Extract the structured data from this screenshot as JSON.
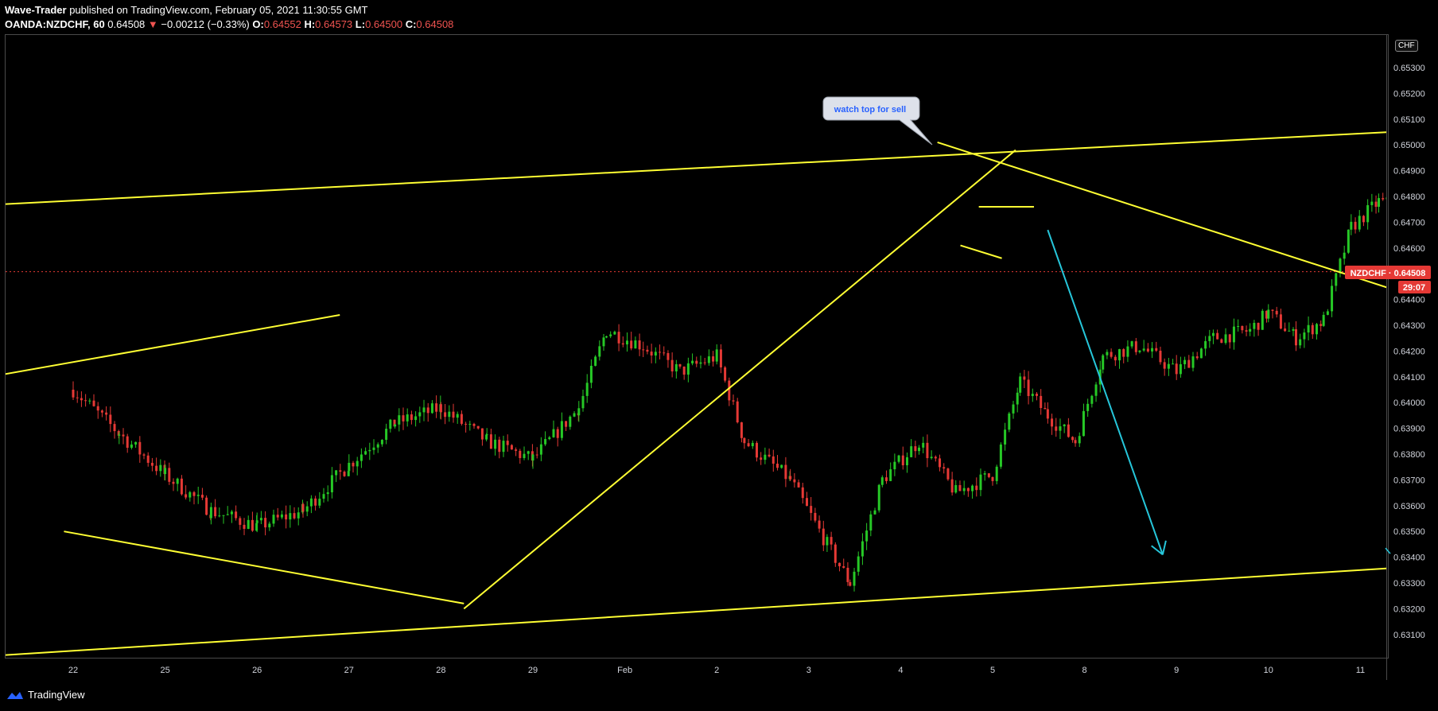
{
  "header": {
    "author": "Wave-Trader",
    "published_text": "published on TradingView.com, February 05, 2021 11:30:55 GMT",
    "symbol": "OANDA:NZDCHF, 60",
    "last": "0.64508",
    "change_arrow": "▼",
    "change": "−0.00212 (−0.33%)",
    "o_label": "O:",
    "o": "0.64552",
    "h_label": "H:",
    "h": "0.64573",
    "l_label": "L:",
    "l": "0.64500",
    "c_label": "C:",
    "c": "0.64508"
  },
  "currency_badge": "CHF",
  "price_tag": {
    "label": "NZDCHF · 0.64508",
    "countdown": "29:07",
    "color": "#e53935"
  },
  "footer": {
    "logo_text": "TradingView",
    "logo_icon": "tradingview-cloud-icon"
  },
  "annotation": {
    "text": "watch top for sell"
  },
  "colors": {
    "up": "#26c826",
    "down": "#e53935",
    "trend": "#ffff33",
    "arrow": "#26c6da",
    "background": "#000000"
  },
  "chart_data": {
    "type": "candlestick",
    "title": "",
    "xlabel": "",
    "ylabel": "",
    "ylim": [
      0.6302,
      0.6545
    ],
    "y_ticks": [
      "0.65300",
      "0.65200",
      "0.65100",
      "0.65000",
      "0.64900",
      "0.64800",
      "0.64700",
      "0.64600",
      "0.64400",
      "0.64300",
      "0.64200",
      "0.64100",
      "0.64000",
      "0.63900",
      "0.63800",
      "0.63700",
      "0.63600",
      "0.63500",
      "0.63400",
      "0.63300",
      "0.63200",
      "0.63100"
    ],
    "x_ticks": [
      "22",
      "25",
      "26",
      "27",
      "28",
      "29",
      "Feb",
      "2",
      "3",
      "4",
      "5",
      "8",
      "9",
      "10",
      "11"
    ],
    "grid": false,
    "last_price": 0.64508,
    "price_path": [
      [
        0,
        0.6405
      ],
      [
        0.5,
        0.6388
      ],
      [
        1.0,
        0.6372
      ],
      [
        1.5,
        0.6358
      ],
      [
        2.0,
        0.6352
      ],
      [
        2.5,
        0.6358
      ],
      [
        3.0,
        0.6376
      ],
      [
        3.5,
        0.6392
      ],
      [
        4.0,
        0.6398
      ],
      [
        4.5,
        0.6385
      ],
      [
        5.0,
        0.6378
      ],
      [
        5.5,
        0.6398
      ],
      [
        5.8,
        0.6428
      ],
      [
        6.2,
        0.6422
      ],
      [
        6.6,
        0.6412
      ],
      [
        7.0,
        0.6418
      ],
      [
        7.3,
        0.6385
      ],
      [
        7.8,
        0.637
      ],
      [
        8.2,
        0.6345
      ],
      [
        8.45,
        0.633
      ],
      [
        8.8,
        0.637
      ],
      [
        9.2,
        0.6385
      ],
      [
        9.6,
        0.6365
      ],
      [
        10.0,
        0.6372
      ],
      [
        10.3,
        0.6408
      ],
      [
        10.6,
        0.6395
      ],
      [
        10.9,
        0.6385
      ],
      [
        11.2,
        0.6418
      ],
      [
        11.6,
        0.6422
      ],
      [
        12.0,
        0.6412
      ],
      [
        12.4,
        0.6425
      ],
      [
        12.8,
        0.6428
      ],
      [
        13.0,
        0.6435
      ],
      [
        13.3,
        0.6425
      ],
      [
        13.6,
        0.6432
      ],
      [
        13.9,
        0.6468
      ],
      [
        14.2,
        0.6478
      ],
      [
        14.6,
        0.6475
      ],
      [
        15.0,
        0.6472
      ],
      [
        15.4,
        0.6478
      ],
      [
        15.7,
        0.6488
      ],
      [
        16.0,
        0.647
      ],
      [
        16.3,
        0.646
      ],
      [
        16.7,
        0.6472
      ],
      [
        17.0,
        0.6468
      ],
      [
        17.3,
        0.6462
      ],
      [
        17.5,
        0.6451
      ]
    ],
    "trendlines": [
      {
        "name": "upper-channel",
        "points": [
          [
            -0.75,
            0.6477
          ],
          [
            20.25,
            0.6516
          ]
        ]
      },
      {
        "name": "lower-channel",
        "points": [
          [
            -0.75,
            0.6302
          ],
          [
            20.25,
            0.6349
          ]
        ]
      },
      {
        "name": "early-resistance",
        "points": [
          [
            -0.75,
            0.6411
          ],
          [
            2.9,
            0.6434
          ]
        ]
      },
      {
        "name": "early-support",
        "points": [
          [
            -0.1,
            0.635
          ],
          [
            4.25,
            0.6322
          ]
        ]
      },
      {
        "name": "rising-support",
        "points": [
          [
            4.25,
            0.632
          ],
          [
            10.25,
            0.6498
          ]
        ]
      },
      {
        "name": "descending-resistance",
        "points": [
          [
            9.4,
            0.6501
          ],
          [
            20.25,
            0.6376
          ]
        ]
      },
      {
        "name": "flag-top",
        "points": [
          [
            9.85,
            0.6476
          ],
          [
            10.45,
            0.6476
          ]
        ]
      },
      {
        "name": "flag-bottom",
        "points": [
          [
            9.65,
            0.6461
          ],
          [
            10.1,
            0.6456
          ]
        ]
      }
    ],
    "projection_arrow": {
      "from": [
        10.6,
        0.6467
      ],
      "to": [
        11.85,
        0.6341
      ]
    }
  }
}
